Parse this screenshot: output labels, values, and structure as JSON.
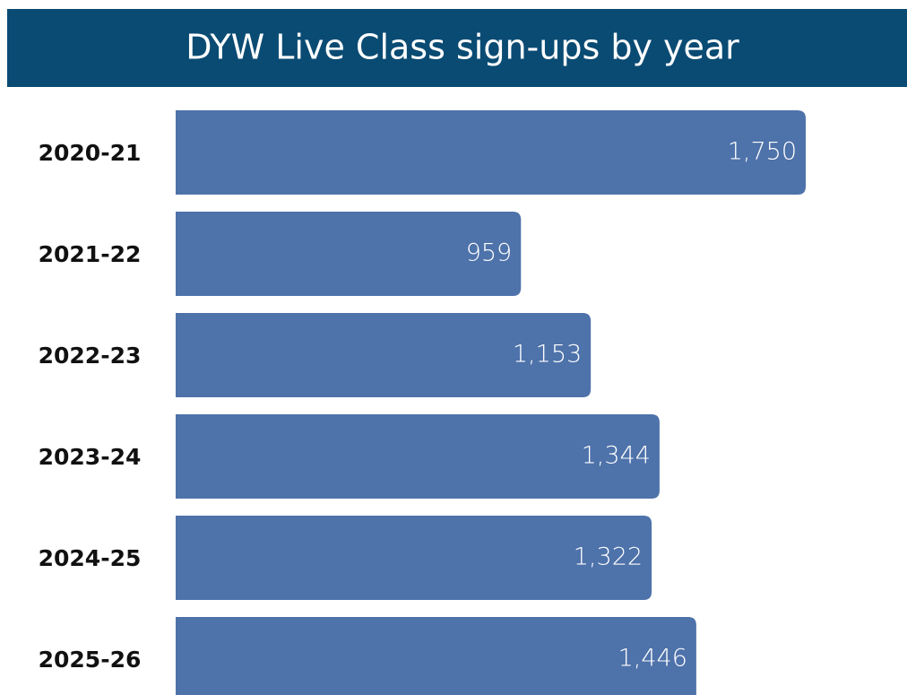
{
  "chart_data": {
    "type": "bar",
    "orientation": "horizontal",
    "title": "DYW Live Class sign-ups by year",
    "categories": [
      "2020-21",
      "2021-22",
      "2022-23",
      "2023-24",
      "2024-25",
      "2025-26"
    ],
    "values": [
      1750,
      959,
      1153,
      1344,
      1322,
      1446
    ],
    "value_labels": [
      "1,750",
      "959",
      "1,153",
      "1,344",
      "1,322",
      "1,446"
    ],
    "color": "#4e72aa"
  }
}
